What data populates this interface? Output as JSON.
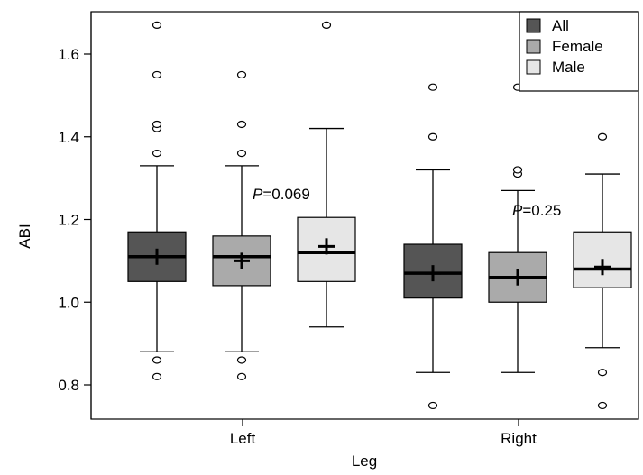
{
  "chart_data": {
    "type": "boxplot",
    "xlabel": "Leg",
    "ylabel": "ABI",
    "ylim": [
      0.72,
      1.72
    ],
    "yticks": [
      0.8,
      1.0,
      1.2,
      1.4,
      1.6
    ],
    "ytick_labels": [
      "0.8",
      "1.0",
      "1.2",
      "1.4",
      "1.6"
    ],
    "categories": [
      "Left",
      "Right"
    ],
    "legend": {
      "position": "top-right",
      "entries": [
        {
          "label": "All",
          "color": "#555555"
        },
        {
          "label": "Female",
          "color": "#aaaaaa"
        },
        {
          "label": "Male",
          "color": "#e6e6e6"
        }
      ]
    },
    "annotations": [
      {
        "group": "Left",
        "prefix": "P",
        "text": "=0.069"
      },
      {
        "group": "Right",
        "prefix": "P",
        "text": "=0.25"
      }
    ],
    "series": [
      {
        "name": "All",
        "color": "#555555",
        "boxes": [
          {
            "category": "Left",
            "whisker_low": 0.88,
            "q1": 1.05,
            "median": 1.11,
            "q3": 1.17,
            "whisker_high": 1.33,
            "mean": 1.11,
            "outliers": [
              0.82,
              0.86,
              1.36,
              1.42,
              1.43,
              1.55,
              1.67
            ]
          },
          {
            "category": "Right",
            "whisker_low": 0.83,
            "q1": 1.01,
            "median": 1.07,
            "q3": 1.14,
            "whisker_high": 1.32,
            "mean": 1.07,
            "outliers": [
              0.75,
              1.4,
              1.52
            ]
          }
        ]
      },
      {
        "name": "Female",
        "color": "#aaaaaa",
        "boxes": [
          {
            "category": "Left",
            "whisker_low": 0.88,
            "q1": 1.04,
            "median": 1.11,
            "q3": 1.16,
            "whisker_high": 1.33,
            "mean": 1.1,
            "outliers": [
              0.82,
              0.86,
              1.36,
              1.43,
              1.55
            ]
          },
          {
            "category": "Right",
            "whisker_low": 0.83,
            "q1": 1.0,
            "median": 1.06,
            "q3": 1.12,
            "whisker_high": 1.27,
            "mean": 1.06,
            "outliers": [
              1.31,
              1.32,
              1.52
            ]
          }
        ]
      },
      {
        "name": "Male",
        "color": "#e6e6e6",
        "boxes": [
          {
            "category": "Left",
            "whisker_low": 0.94,
            "q1": 1.05,
            "median": 1.12,
            "q3": 1.205,
            "whisker_high": 1.42,
            "mean": 1.135,
            "outliers": [
              1.67
            ]
          },
          {
            "category": "Right",
            "whisker_low": 0.89,
            "q1": 1.035,
            "median": 1.08,
            "q3": 1.17,
            "whisker_high": 1.31,
            "mean": 1.085,
            "outliers": [
              0.75,
              0.83,
              1.4
            ]
          }
        ]
      }
    ]
  }
}
